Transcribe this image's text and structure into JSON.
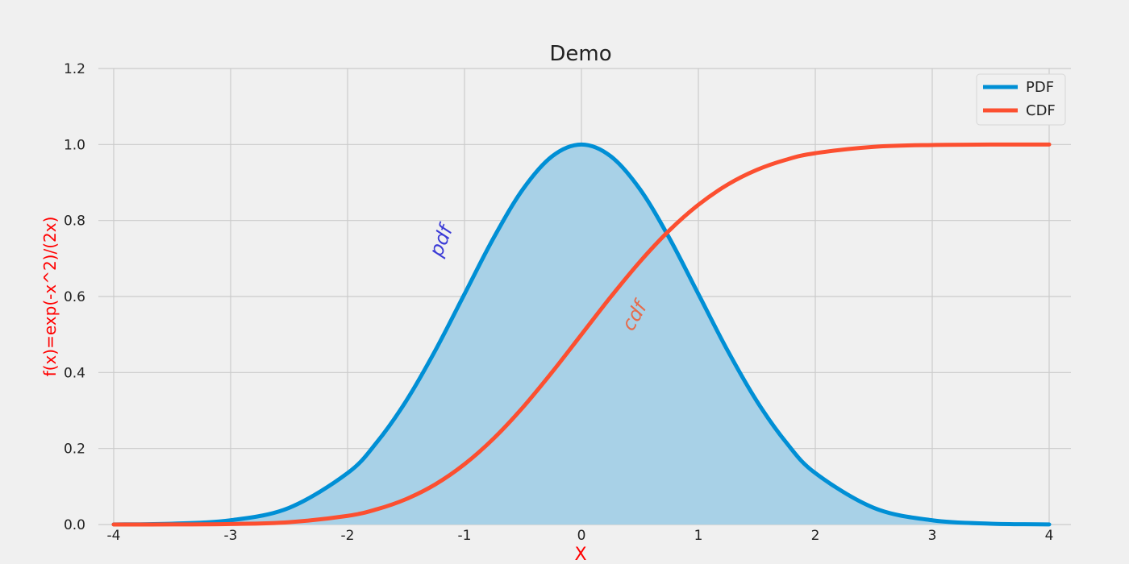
{
  "chart_data": {
    "type": "area",
    "title": "Demo",
    "xlabel": "X",
    "ylabel": "f(x)=exp(-x^2)/(2x)",
    "xlim": [
      -4,
      4
    ],
    "ylim": [
      0,
      1.2
    ],
    "xticks": [
      -4,
      -3,
      -2,
      -1,
      0,
      1,
      2,
      3,
      4
    ],
    "xtick_labels": [
      "-4",
      "-3",
      "-2",
      "-1",
      "0",
      "1",
      "2",
      "3",
      "4"
    ],
    "yticks": [
      0.0,
      0.2,
      0.4,
      0.6,
      0.8,
      1.0,
      1.2
    ],
    "ytick_labels": [
      "0.0",
      "0.2",
      "0.4",
      "0.6",
      "0.8",
      "1.0",
      "1.2"
    ],
    "grid": true,
    "legend_position": "top-right",
    "series": [
      {
        "name": "PDF",
        "color": "#008fd5",
        "fill_under": true,
        "fill_color": "#a8d1e7",
        "x": [
          -4,
          -3.5,
          -3,
          -2.5,
          -2,
          -1.75,
          -1.5,
          -1.25,
          -1,
          -0.75,
          -0.5,
          -0.25,
          0,
          0.25,
          0.5,
          0.75,
          1,
          1.25,
          1.5,
          1.75,
          2,
          2.5,
          3,
          3.5,
          4
        ],
        "y": [
          0.0003,
          0.0022,
          0.0111,
          0.0439,
          0.1353,
          0.2163,
          0.3247,
          0.4578,
          0.6065,
          0.7548,
          0.8825,
          0.9692,
          1.0,
          0.9692,
          0.8825,
          0.7548,
          0.6065,
          0.4578,
          0.3247,
          0.2163,
          0.1353,
          0.0439,
          0.0111,
          0.0022,
          0.0003
        ]
      },
      {
        "name": "CDF",
        "color": "#fc4f30",
        "fill_under": false,
        "x": [
          -4,
          -3.5,
          -3,
          -2.5,
          -2,
          -1.75,
          -1.5,
          -1.25,
          -1,
          -0.75,
          -0.5,
          -0.25,
          0,
          0.25,
          0.5,
          0.75,
          1,
          1.25,
          1.5,
          1.75,
          2,
          2.5,
          3,
          3.5,
          4
        ],
        "y": [
          0.0,
          0.0002,
          0.0013,
          0.0062,
          0.0228,
          0.0401,
          0.0668,
          0.1056,
          0.1587,
          0.2266,
          0.3085,
          0.4013,
          0.5,
          0.5987,
          0.6915,
          0.7734,
          0.8413,
          0.8944,
          0.9332,
          0.9599,
          0.9772,
          0.9938,
          0.9987,
          0.9998,
          1.0
        ]
      }
    ],
    "annotations": [
      {
        "text": "pdf",
        "x": -1.15,
        "y": 0.74,
        "rotation": -68,
        "color": "#3b3bd6"
      },
      {
        "text": "cdf",
        "x": 0.5,
        "y": 0.54,
        "rotation": -60,
        "color": "#e66a4a"
      }
    ]
  }
}
